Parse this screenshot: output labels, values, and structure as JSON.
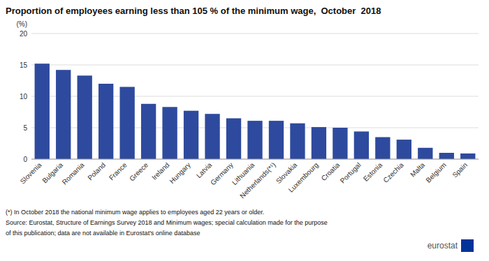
{
  "chart_data": {
    "type": "bar",
    "title": "Proportion of employees earning less than 105 % of the minimum wage,  October  2018",
    "ylabel": "(%)",
    "categories": [
      "Slovenia",
      "Bulgaria",
      "Romania",
      "Poland",
      "France",
      "Greece",
      "Ireland",
      "Hungary",
      "Latvia",
      "Germany",
      "Lithuania",
      "Netherlands(*¹)",
      "Slovakia",
      "Luxembourg",
      "Croatia",
      "Portugal",
      "Estonia",
      "Czechia",
      "Malta",
      "Belgium",
      "Spain"
    ],
    "values": [
      15.2,
      14.2,
      13.3,
      12.0,
      11.5,
      8.8,
      8.3,
      7.7,
      7.2,
      6.5,
      6.1,
      6.1,
      5.7,
      5.1,
      5.0,
      4.4,
      3.5,
      3.1,
      1.8,
      1.0,
      0.9
    ],
    "color": "#2E4A9E",
    "ylim": [
      0,
      20
    ],
    "yticks": [
      0,
      5,
      10,
      15,
      20
    ],
    "grid": true,
    "annotations": [
      "(*) In October 2018 the national minimum wage applies to employees aged 22 years or older.",
      "Source: Eurostat, Structure of Earnings Survey 2018 and Minimum wages; special calculation made for the purpose",
      "of this publication; data are not available in Eurostat's online database",
      "eurostat"
    ]
  }
}
